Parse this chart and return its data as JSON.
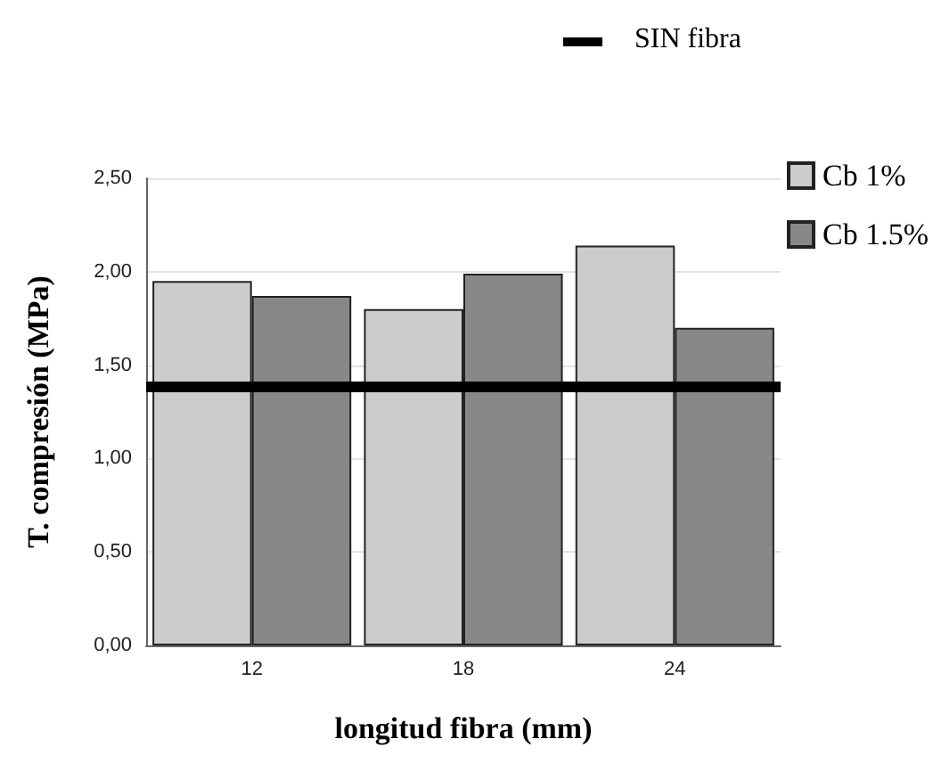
{
  "chart_data": {
    "type": "bar",
    "xlabel": "longitud fibra (mm)",
    "ylabel": "T. compresión (MPa)",
    "categories": [
      "12",
      "18",
      "24"
    ],
    "series": [
      {
        "name": "Cb 1%",
        "color": "#cccccc",
        "values": [
          1.95,
          1.8,
          2.14
        ]
      },
      {
        "name": "Cb 1.5%",
        "color": "#888888",
        "values": [
          1.87,
          1.99,
          1.7
        ]
      }
    ],
    "ylim": [
      0,
      2.5
    ],
    "yticks": [
      {
        "value": 0,
        "label": "0,00"
      },
      {
        "value": 0.5,
        "label": "0,50"
      },
      {
        "value": 1,
        "label": "1,00"
      },
      {
        "value": 1.5,
        "label": "1,50"
      },
      {
        "value": 2,
        "label": "2,00"
      },
      {
        "value": 2.5,
        "label": "2,50"
      }
    ],
    "ref_lines": [
      {
        "axis": "y",
        "value": 1.39,
        "label": "SIN fibra",
        "color": "#000000"
      }
    ],
    "grid": "y",
    "legend": "top right"
  }
}
